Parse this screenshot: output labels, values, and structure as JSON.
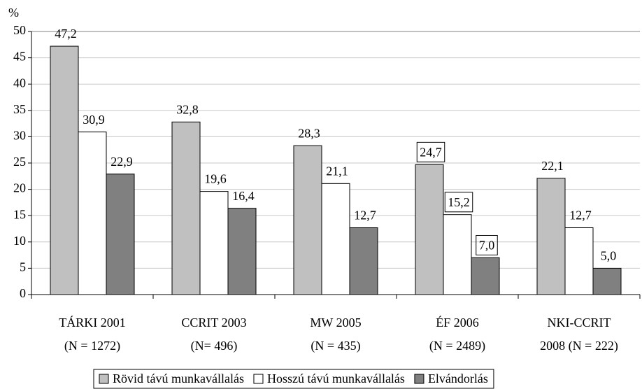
{
  "chart_data": {
    "type": "bar",
    "y_label": "%",
    "categories": [
      [
        "TÁRKI 2001",
        "(N = 1272)"
      ],
      [
        "CCRIT 2003",
        "(N= 496)"
      ],
      [
        "MW 2005",
        "(N = 435)"
      ],
      [
        "ÉF 2006",
        "(N = 2489)"
      ],
      [
        "NKI-CCRIT",
        "2008 (N = 222)"
      ]
    ],
    "series": [
      {
        "name": "Rövid távú munkavállalás",
        "color": "#c0c0c0",
        "values": [
          47.2,
          32.8,
          28.3,
          24.7,
          22.1
        ],
        "value_labels": [
          "47,2",
          "32,8",
          "28,3",
          "24,7",
          "22,1"
        ]
      },
      {
        "name": "Hosszú távú munkavállalás",
        "color": "#ffffff",
        "values": [
          30.9,
          19.6,
          21.1,
          15.2,
          12.7
        ],
        "value_labels": [
          "30,9",
          "19,6",
          "21,1",
          "15,2",
          "12,7"
        ]
      },
      {
        "name": "Elvándorlás",
        "color": "#808080",
        "values": [
          22.9,
          16.4,
          12.7,
          7.0,
          5.0
        ],
        "value_labels": [
          "22,9",
          "16,4",
          "12,7",
          "7,0",
          "5,0"
        ]
      }
    ],
    "label_box": [
      false,
      false,
      false,
      true,
      false
    ],
    "ylim": [
      0,
      50
    ],
    "yticks": [
      0,
      5,
      10,
      15,
      20,
      25,
      30,
      35,
      40,
      45,
      50
    ],
    "grid": true,
    "legend": "bottom"
  }
}
